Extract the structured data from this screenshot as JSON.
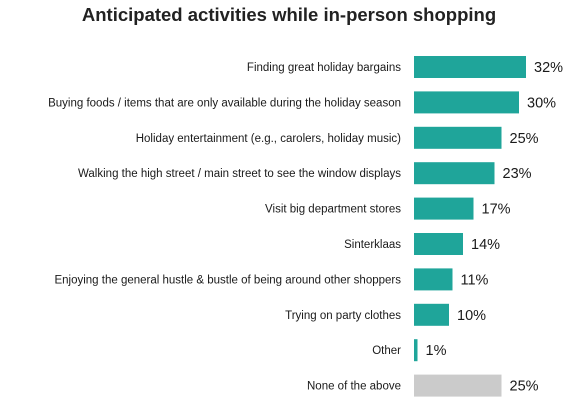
{
  "chart_data": {
    "type": "bar",
    "orientation": "horizontal",
    "title": "Anticipated activities while in-person shopping",
    "categories": [
      "Finding great holiday bargains",
      "Buying foods / items that are only available during the holiday season",
      "Holiday entertainment (e.g., carolers, holiday music)",
      "Walking the high street / main street to see the window displays",
      "Visit big department stores",
      "Sinterklaas",
      "Enjoying the general hustle & bustle of being around other shoppers",
      "Trying on party clothes",
      "Other",
      "None of the above"
    ],
    "values": [
      32,
      30,
      25,
      23,
      17,
      14,
      11,
      10,
      1,
      25
    ],
    "value_labels": [
      "32%",
      "30%",
      "25%",
      "23%",
      "17%",
      "14%",
      "11%",
      "10%",
      "1%",
      "25%"
    ],
    "unit": "%",
    "xlim": [
      0,
      32
    ],
    "grid": false,
    "legend": "none",
    "colors": {
      "bar": "#1fa59a",
      "bar_none": "#cbcbcb"
    }
  }
}
